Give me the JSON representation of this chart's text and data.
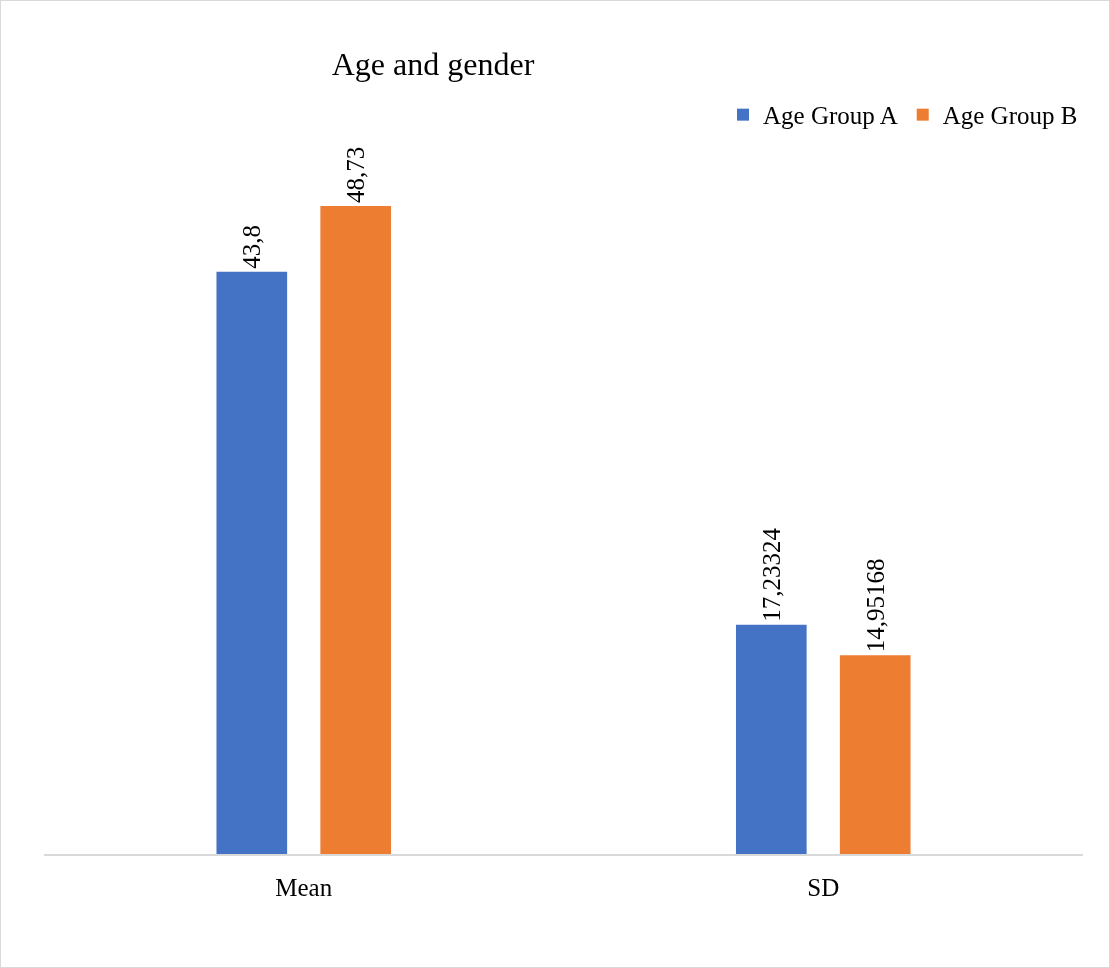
{
  "chart_data": {
    "type": "bar",
    "title": "Age and gender",
    "categories": [
      "Mean",
      "SD"
    ],
    "series": [
      {
        "name": "Age Group A",
        "color": "#4472c4",
        "values": [
          43.8,
          17.23324
        ],
        "value_labels": [
          "43,8",
          "17,23324"
        ]
      },
      {
        "name": "Age Group B",
        "color": "#ed7d31",
        "values": [
          48.73,
          14.95168
        ],
        "value_labels": [
          "48,73",
          "14,95168"
        ]
      }
    ],
    "tick_labels": "x",
    "grid": false,
    "legend": "top right"
  }
}
